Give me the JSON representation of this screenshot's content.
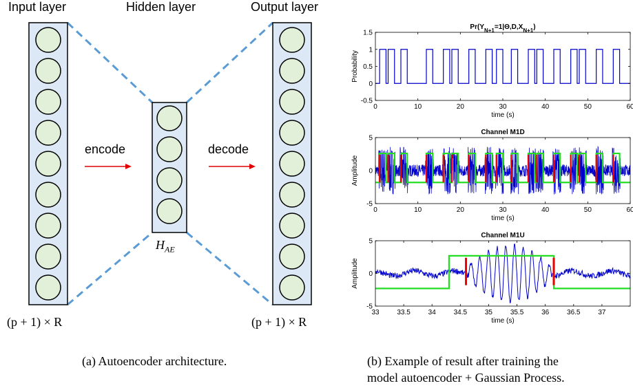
{
  "figure_a": {
    "titles": {
      "input": "Input layer",
      "hidden": "Hidden layer",
      "output": "Output layer"
    },
    "encode_label": "encode",
    "decode_label": "decode",
    "hidden_label_main": "H",
    "hidden_label_sub": "AE",
    "input_size_label": "(p + 1) × R",
    "output_size_label": "(p + 1) × R",
    "layer_node_counts": {
      "input": 9,
      "hidden": 4,
      "output": 9
    },
    "colors": {
      "node_fill": "#e2efd9",
      "layer_fill": "#dce8f5",
      "dashes": "#5b9bd5",
      "arrow": "#e00000"
    },
    "caption": "(a) Autoencoder architecture."
  },
  "figure_b": {
    "caption_line1": "(b) Example of result after training the",
    "caption_line2": "model autoencoder + Gaussian Process."
  },
  "chart_data": [
    {
      "type": "line",
      "title_main": "Pr(Y",
      "title_sub1": "N+1",
      "title_mid": "=1|Θ,D,X",
      "title_sub2": "N+1",
      "title_end": ")",
      "xlabel": "time (s)",
      "ylabel": "Probability",
      "xlim": [
        0,
        60
      ],
      "ylim": [
        -0.5,
        1.5
      ],
      "xticks": [
        0,
        10,
        20,
        30,
        40,
        50,
        60
      ],
      "yticks": [
        -0.5,
        0,
        0.5,
        1,
        1.5
      ],
      "xtick_labels": [
        "0",
        "10",
        "20",
        "30",
        "40",
        "50",
        "60"
      ],
      "ytick_labels": [
        "-0.5",
        "0",
        "0.5",
        "1",
        "1.5"
      ],
      "series": [
        {
          "color": "#0000cc",
          "high_intervals": [
            [
              1.0,
              2.5
            ],
            [
              3.0,
              4.5
            ],
            [
              6.0,
              7.5
            ],
            [
              12.0,
              13.5
            ],
            [
              16.0,
              17.5
            ],
            [
              18.0,
              19.5
            ],
            [
              22.0,
              23.5
            ],
            [
              26.0,
              27.5
            ],
            [
              28.5,
              30.0
            ],
            [
              32.0,
              33.5
            ],
            [
              36.0,
              37.5
            ],
            [
              38.0,
              39.5
            ],
            [
              42.0,
              43.5
            ],
            [
              46.0,
              47.5
            ],
            [
              48.0,
              49.5
            ],
            [
              52.0,
              53.5
            ],
            [
              56.0,
              57.5
            ]
          ]
        }
      ]
    },
    {
      "type": "line",
      "title": "Channel M1D",
      "xlabel": "time (s)",
      "ylabel": "Amplitude",
      "xlim": [
        0,
        60
      ],
      "ylim": [
        -5,
        5
      ],
      "xticks": [
        0,
        10,
        20,
        30,
        40,
        50,
        60
      ],
      "yticks": [
        -5,
        0,
        5
      ],
      "xtick_labels": [
        "0",
        "10",
        "20",
        "30",
        "40",
        "50",
        "60"
      ],
      "ytick_labels": [
        "-5",
        "0",
        "5"
      ],
      "series": [
        {
          "color": "#0000cc",
          "kind": "signal"
        },
        {
          "color": "#22dd22",
          "kind": "box",
          "low": -1.8,
          "high": 2.6,
          "high_intervals": [
            [
              1.0,
              2.5
            ],
            [
              3.0,
              4.5
            ],
            [
              6.0,
              7.5
            ],
            [
              12.0,
              13.5
            ],
            [
              16.0,
              17.5
            ],
            [
              18.0,
              19.5
            ],
            [
              22.0,
              23.5
            ],
            [
              26.0,
              27.5
            ],
            [
              28.5,
              30.0
            ],
            [
              32.0,
              33.5
            ],
            [
              36.0,
              37.5
            ],
            [
              38.0,
              39.5
            ],
            [
              42.0,
              43.5
            ],
            [
              46.0,
              47.5
            ],
            [
              48.0,
              49.5
            ],
            [
              52.0,
              53.5
            ],
            [
              56.0,
              57.5
            ]
          ]
        },
        {
          "color": "#ee0000",
          "kind": "onsets",
          "times": [
            1.0,
            3.0,
            6.0,
            12.0,
            16.0,
            18.0,
            22.0,
            26.0,
            28.5,
            32.0,
            36.0,
            38.0,
            42.0,
            46.0,
            48.0,
            52.0,
            56.0
          ]
        }
      ]
    },
    {
      "type": "line",
      "title": "Channel M1U",
      "xlabel": "time (s)",
      "ylabel": "Amplitude",
      "xlim": [
        33,
        37.5
      ],
      "ylim": [
        -5,
        5
      ],
      "xticks": [
        33,
        33.5,
        34,
        34.5,
        35,
        35.5,
        36,
        36.5,
        37
      ],
      "yticks": [
        -5,
        0,
        5
      ],
      "xtick_labels": [
        "33",
        "33.5",
        "34",
        "34.5",
        "35",
        "35.5",
        "36",
        "36.5",
        "37"
      ],
      "ytick_labels": [
        "-5",
        "0",
        "5"
      ],
      "series": [
        {
          "color": "#0000cc",
          "kind": "signal",
          "burst": [
            34.65,
            36.1
          ]
        },
        {
          "color": "#22dd22",
          "kind": "box",
          "low": -2.3,
          "high": 2.7,
          "high_intervals": [
            [
              34.3,
              36.15
            ]
          ]
        },
        {
          "color": "#ee0000",
          "kind": "onsets",
          "times": [
            34.6,
            36.15
          ]
        }
      ]
    }
  ]
}
